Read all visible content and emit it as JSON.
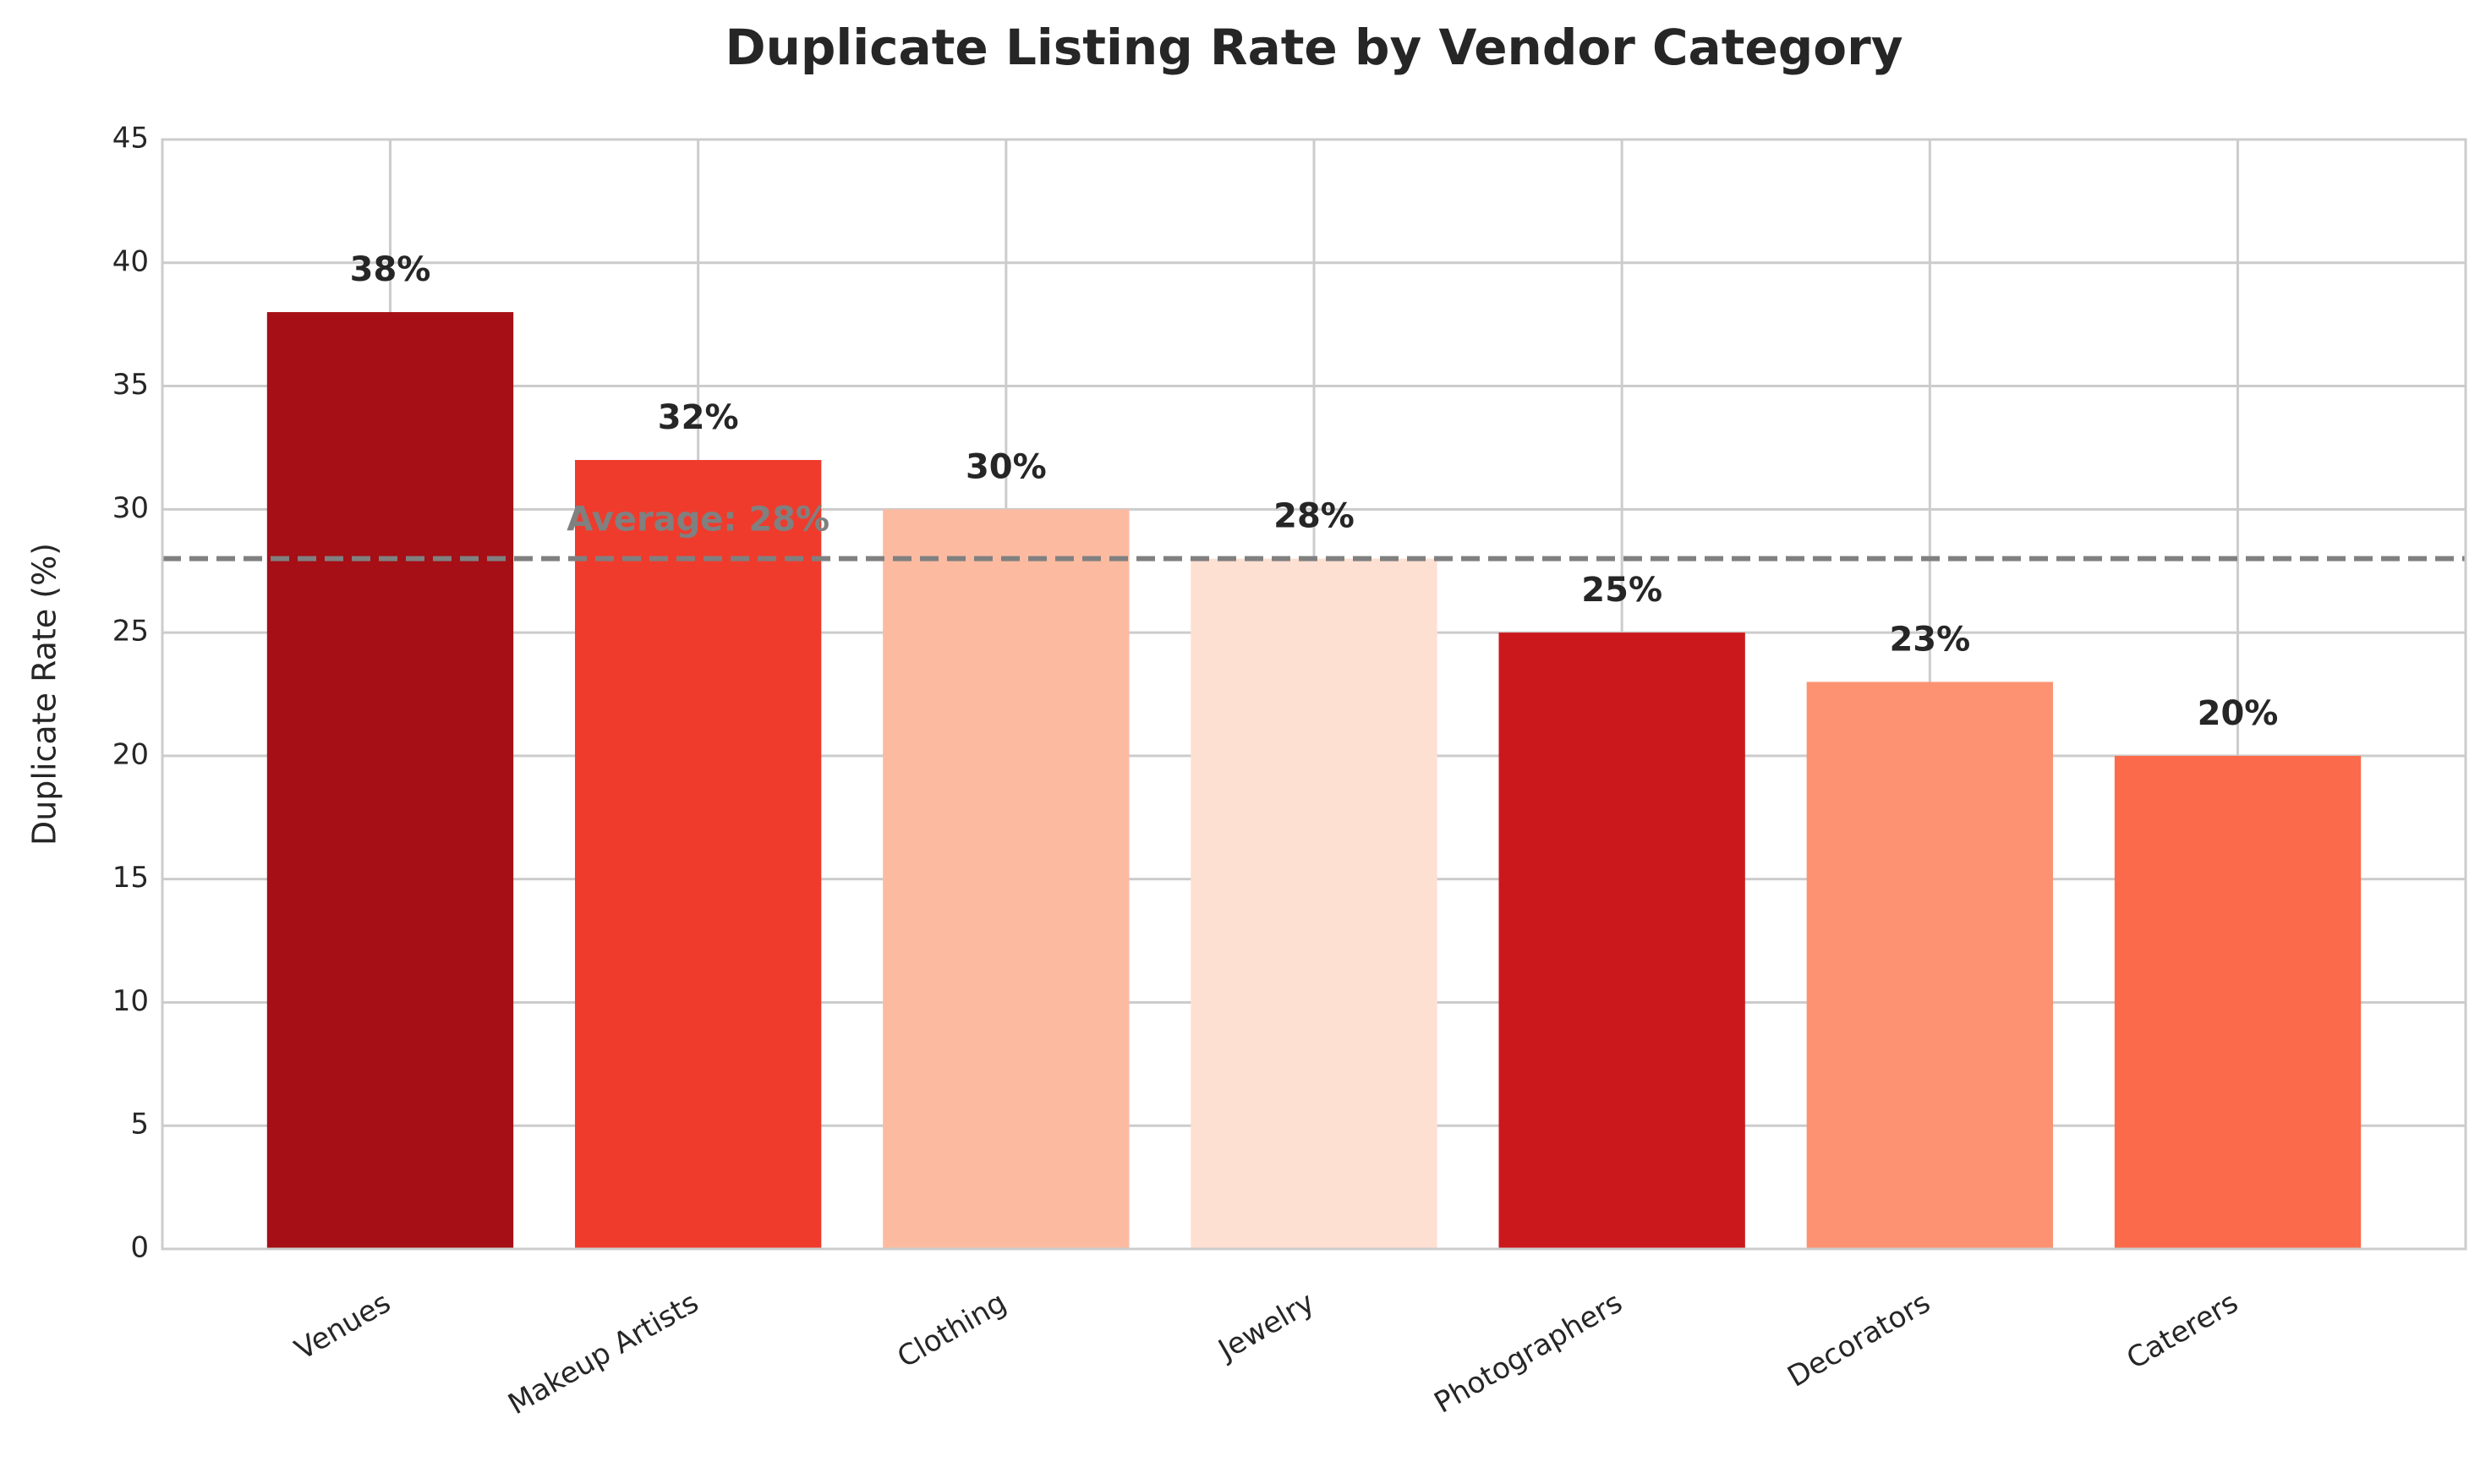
{
  "chart_data": {
    "type": "bar",
    "title": "Duplicate Listing Rate by Vendor Category",
    "ylabel": "Duplicate Rate (%)",
    "categories": [
      "Venues",
      "Makeup Artists",
      "Clothing",
      "Jewelry",
      "Photographers",
      "Decorators",
      "Caterers"
    ],
    "values": [
      38,
      32,
      30,
      28,
      25,
      23,
      20
    ],
    "value_labels": [
      "38%",
      "32%",
      "30%",
      "28%",
      "25%",
      "23%",
      "20%"
    ],
    "colors": [
      "#a50f15",
      "#ef3b2c",
      "#fcbba1",
      "#fee0d2",
      "#cb181d",
      "#fc9272",
      "#fb6a4a"
    ],
    "ylim": [
      0,
      45
    ],
    "yticks": [
      0,
      5,
      10,
      15,
      20,
      25,
      30,
      35,
      40,
      45
    ],
    "grid": true,
    "average": {
      "value": 28,
      "label": "Average: 28%"
    }
  }
}
